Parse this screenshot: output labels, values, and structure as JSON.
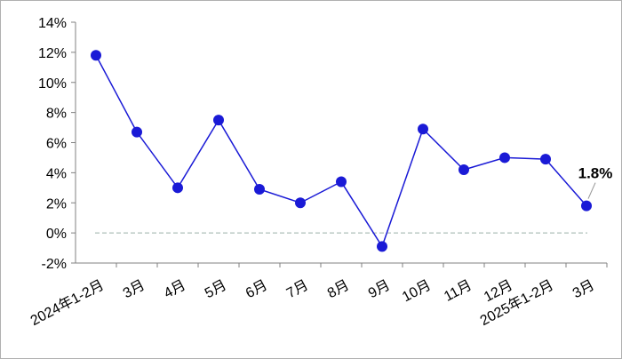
{
  "chart_data": {
    "type": "line",
    "categories": [
      "2024年1-2月",
      "3月",
      "4月",
      "5月",
      "6月",
      "7月",
      "8月",
      "9月",
      "10月",
      "11月",
      "12月",
      "2025年1-2月",
      "3月"
    ],
    "series": [
      {
        "color": "#1a1ad6",
        "values": [
          11.8,
          6.7,
          3.0,
          7.5,
          2.9,
          2.0,
          3.4,
          -0.9,
          6.9,
          4.2,
          5.0,
          4.9,
          1.8
        ],
        "value_labels": [
          null,
          null,
          null,
          null,
          null,
          null,
          null,
          null,
          null,
          null,
          null,
          null,
          "1.8%"
        ]
      }
    ],
    "ylim": [
      -2,
      14
    ],
    "yticks": [
      {
        "value": -2,
        "label": "-2%"
      },
      {
        "value": 0,
        "label": "0%"
      },
      {
        "value": 2,
        "label": "2%"
      },
      {
        "value": 4,
        "label": "4%"
      },
      {
        "value": 6,
        "label": "6%"
      },
      {
        "value": 8,
        "label": "8%"
      },
      {
        "value": 10,
        "label": "10%"
      },
      {
        "value": 12,
        "label": "12%"
      },
      {
        "value": 14,
        "label": "14%"
      }
    ]
  }
}
